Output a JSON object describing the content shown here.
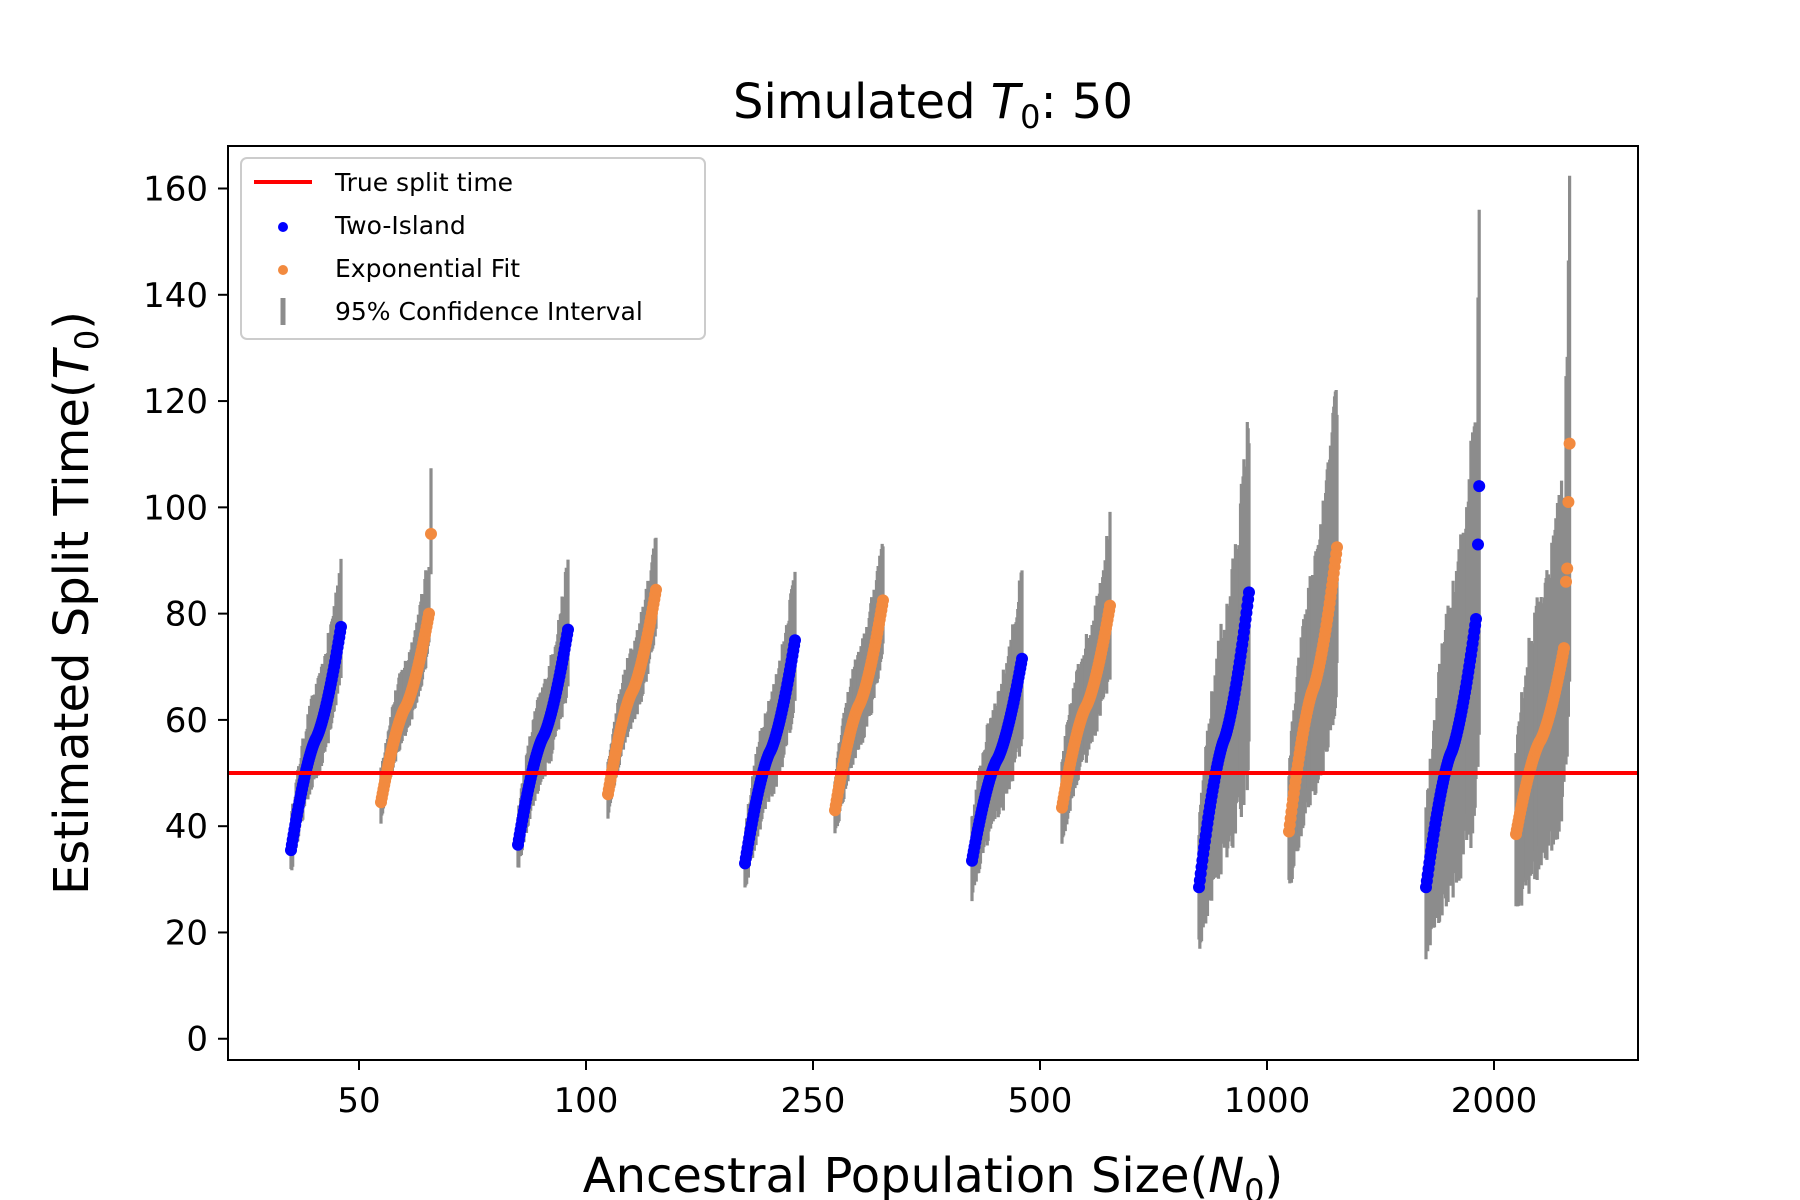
{
  "chart_data": {
    "type": "scatter",
    "title_prefix": "Simulated ",
    "title_var": "T",
    "title_sub": "0",
    "title_suffix": ": 50",
    "xlabel_prefix": "Ancestral Population Size(",
    "xlabel_var": "N",
    "xlabel_sub": "0",
    "xlabel_suffix": ")",
    "ylabel_prefix": "Estimated Split Time(",
    "ylabel_var": "T",
    "ylabel_sub": "0",
    "ylabel_suffix": ")",
    "x_tick_labels": [
      "50",
      "100",
      "250",
      "500",
      "1000",
      "2000"
    ],
    "y_ticks": [
      0,
      20,
      40,
      60,
      80,
      100,
      120,
      140,
      160
    ],
    "ylim": [
      -4,
      168
    ],
    "grid": false,
    "legend_position": "top-left",
    "reference_line": {
      "name": "True split time",
      "value": 50,
      "color": "#ff0000"
    },
    "series": [
      {
        "name": "Two-Island",
        "color": "#0000ff"
      },
      {
        "name": "Exponential Fit",
        "color": "#f28a3f"
      },
      {
        "name": "95% Confidence Interval",
        "color": "#8c8c8c"
      }
    ],
    "groups": [
      {
        "category": "50",
        "two_island": {
          "min": 35.5,
          "max": 77.5,
          "lo": 0.88,
          "hi": 1.16
        },
        "exponential": {
          "min": 44.5,
          "max": 80,
          "lo": 0.92,
          "hi": 1.13,
          "outlier": 95
        }
      },
      {
        "category": "100",
        "two_island": {
          "min": 36.5,
          "max": 77,
          "lo": 0.87,
          "hi": 1.16
        },
        "exponential": {
          "min": 46,
          "max": 84.5,
          "lo": 0.91,
          "hi": 1.12
        }
      },
      {
        "category": "250",
        "two_island": {
          "min": 33,
          "max": 75,
          "lo": 0.84,
          "hi": 1.18
        },
        "exponential": {
          "min": 43,
          "max": 82.5,
          "lo": 0.88,
          "hi": 1.15
        }
      },
      {
        "category": "500",
        "two_island": {
          "min": 33.5,
          "max": 71.5,
          "lo": 0.8,
          "hi": 1.22
        },
        "exponential": {
          "min": 43.5,
          "max": 81.5,
          "lo": 0.85,
          "hi": 1.19
        }
      },
      {
        "category": "1000",
        "two_island": {
          "min": 28.5,
          "max": 84,
          "lo": 0.62,
          "hi": 1.38
        },
        "exponential": {
          "min": 39,
          "max": 92.5,
          "lo": 0.72,
          "hi": 1.32
        }
      },
      {
        "category": "2000",
        "two_island": {
          "min": 28.5,
          "max": 79,
          "lo": 0.55,
          "hi": 1.5,
          "outliers": [
            93,
            104
          ]
        },
        "exponential": {
          "min": 38.5,
          "max": 73.5,
          "lo": 0.6,
          "hi": 1.45,
          "outliers": [
            86,
            88.5,
            101,
            112
          ]
        }
      }
    ]
  }
}
